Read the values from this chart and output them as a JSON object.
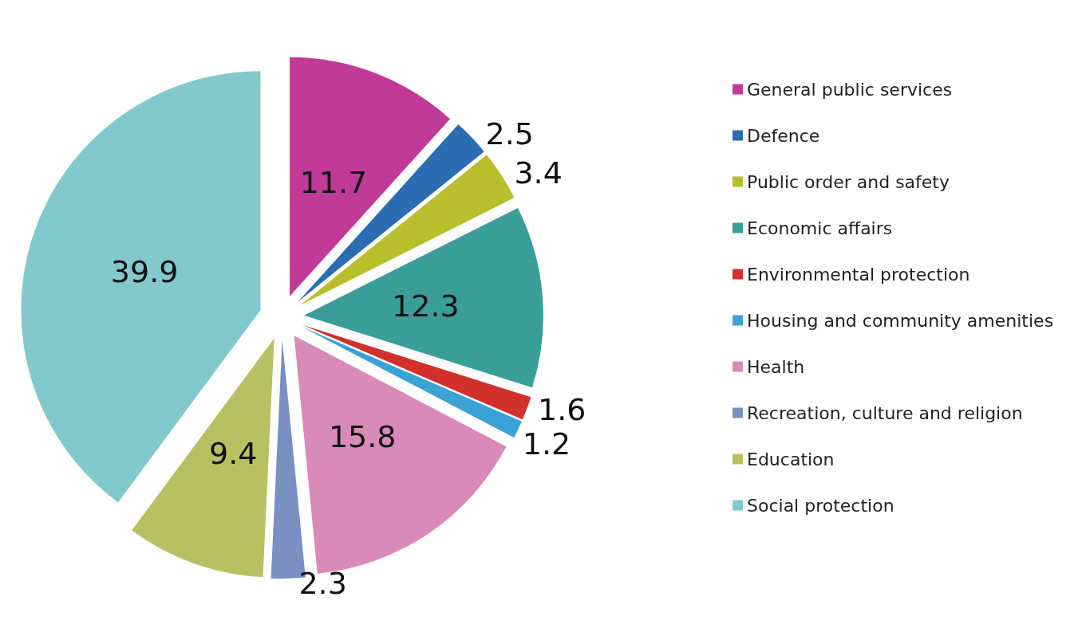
{
  "chart_data": {
    "type": "pie",
    "categories": [
      "General public services",
      "Defence",
      "Public order and safety",
      "Economic affairs",
      "Environmental protection",
      "Housing and community amenities",
      "Health",
      "Recreation, culture and religion",
      "Education",
      "Social protection"
    ],
    "values": [
      11.7,
      2.5,
      3.4,
      12.3,
      1.6,
      1.2,
      15.8,
      2.3,
      9.4,
      39.9
    ],
    "colors": [
      "#c23a98",
      "#2a6db2",
      "#b9bf2c",
      "#3a9e98",
      "#d2302a",
      "#3ba2d8",
      "#d98ab9",
      "#7a90c2",
      "#b8c062",
      "#82c9cd"
    ],
    "data_labels": true,
    "legend": "right"
  }
}
